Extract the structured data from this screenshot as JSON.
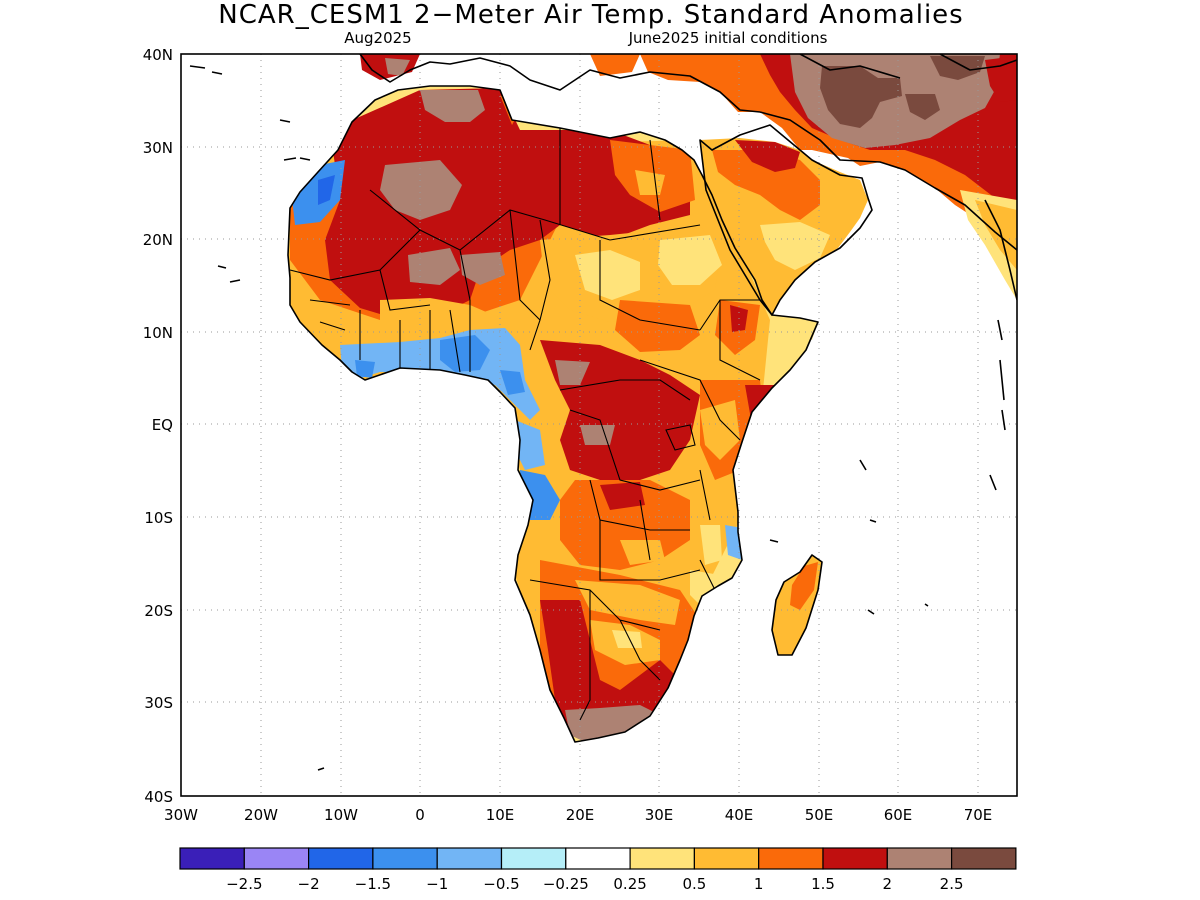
{
  "header": {
    "title": "NCAR_CESM1 2−Meter Air Temp. Standard Anomalies",
    "valid_month": "Aug2025",
    "init": "June2025 initial conditions"
  },
  "axes": {
    "lat_labels": [
      "40N",
      "30N",
      "20N",
      "10N",
      "EQ",
      "10S",
      "20S",
      "30S",
      "40S"
    ],
    "lon_labels": [
      "30W",
      "20W",
      "10W",
      "0",
      "10E",
      "20E",
      "30E",
      "40E",
      "50E",
      "60E",
      "70E"
    ]
  },
  "legend": {
    "colors": [
      "#3a1fb8",
      "#9a85f5",
      "#2166e8",
      "#3c90ee",
      "#72b5f5",
      "#b5eef8",
      "#ffffff",
      "#ffe37a",
      "#ffbb33",
      "#fa6a0a",
      "#c00f0f",
      "#ad8273",
      "#7a4a3e"
    ],
    "labels": [
      "−2.5",
      "−2",
      "−1.5",
      "−1",
      "−0.5",
      "−0.25",
      "0.25",
      "0.5",
      "1",
      "1.5",
      "2",
      "2.5"
    ]
  }
}
